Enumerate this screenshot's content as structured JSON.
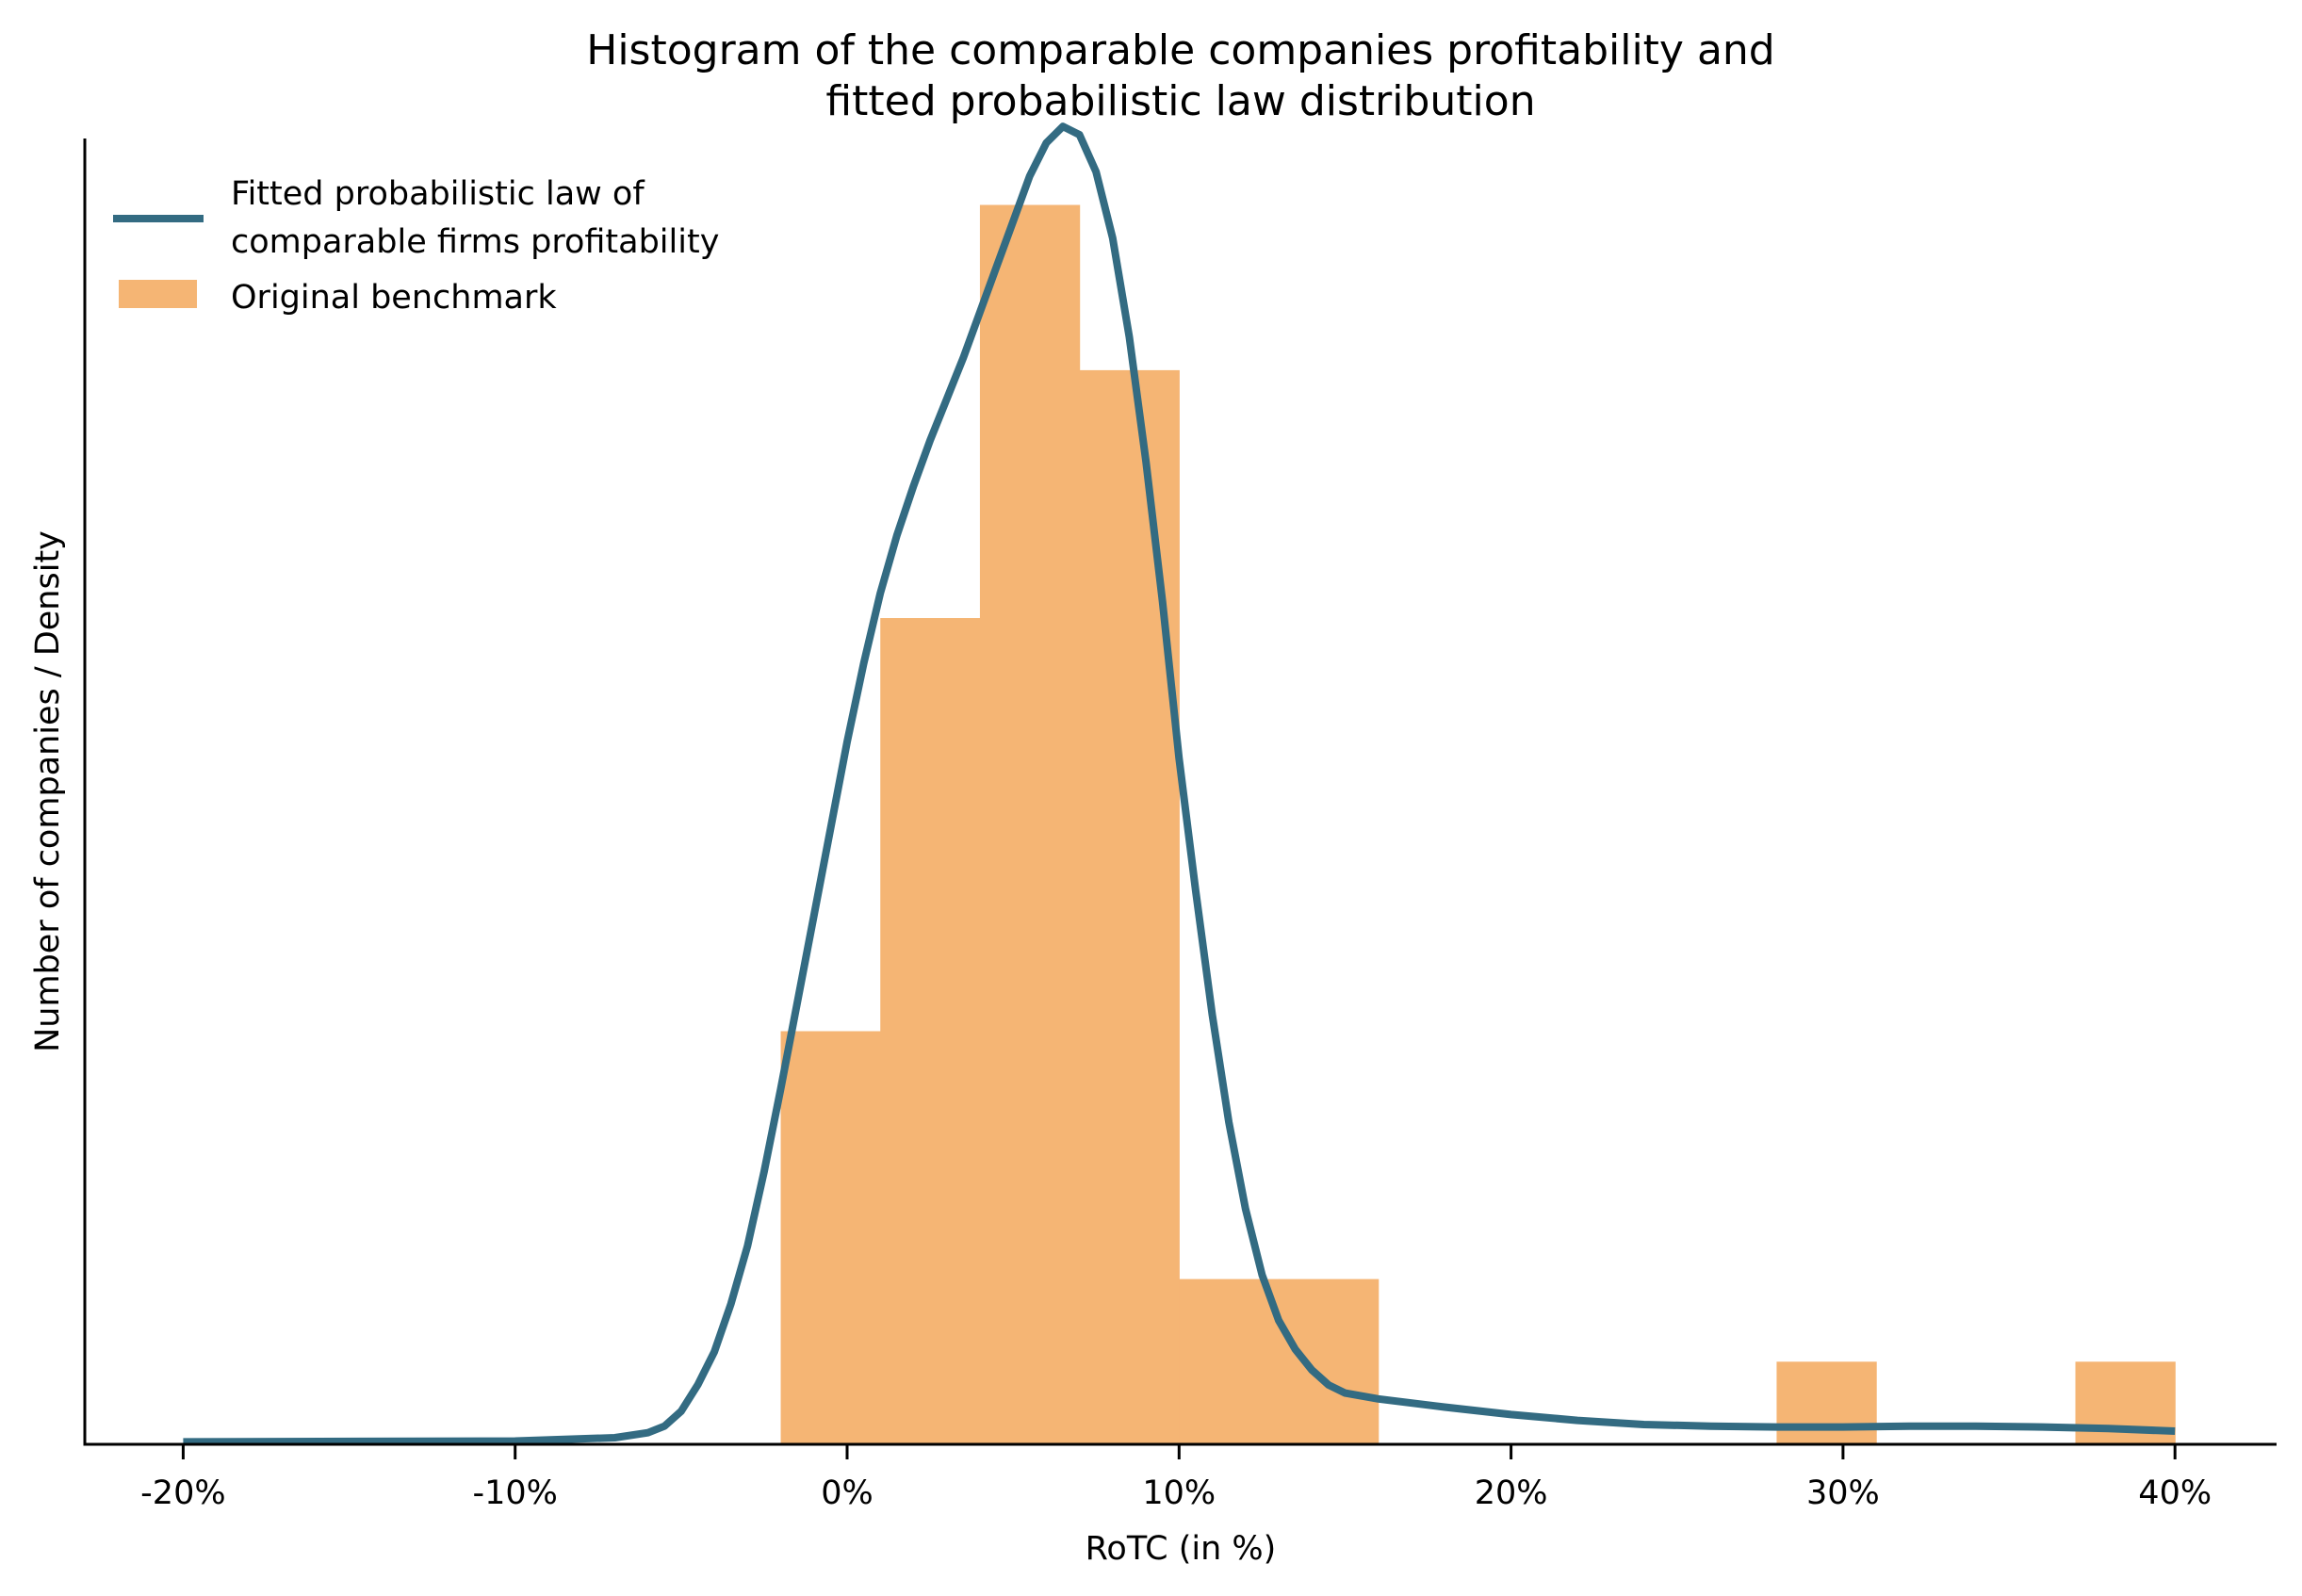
{
  "chart_data": {
    "type": "bar",
    "subtype": "histogram_with_density_line",
    "title": "Histogram of the comparable companies profitability and\nfitted probabilistic law distribution",
    "title_lines": [
      "Histogram of the comparable companies profitability and",
      "fitted probabilistic law distribution"
    ],
    "xlabel": "RoTC (in %)",
    "ylabel": "Number of companies / Density",
    "xlim": [
      -23,
      42.5
    ],
    "ylim": [
      0,
      15.8
    ],
    "x_ticks": [
      -20,
      -10,
      0,
      10,
      20,
      30,
      40
    ],
    "x_tick_labels": [
      "-20%",
      "-10%",
      "0%",
      "10%",
      "20%",
      "30%",
      "40%"
    ],
    "y_ticks": [],
    "grid": false,
    "legend_position": "upper left",
    "legend": [
      {
        "label_lines": [
          "Fitted probabilistic law of",
          "comparable firms profitability"
        ],
        "type": "line",
        "color": "#336b82"
      },
      {
        "label_lines": [
          "Original benchmark"
        ],
        "type": "patch",
        "color": "#f5b574"
      }
    ],
    "series": [
      {
        "name": "Original benchmark",
        "type": "histogram",
        "color": "#f5b574",
        "bin_edges": [
          -2,
          1,
          4,
          7,
          10,
          13,
          16,
          19,
          22,
          25,
          28,
          31,
          34,
          37,
          40
        ],
        "values": [
          5,
          10,
          15,
          13,
          2,
          2,
          0,
          0,
          0,
          0,
          1,
          0,
          0,
          1
        ]
      },
      {
        "name": "Fitted probabilistic law of comparable firms profitability",
        "type": "line",
        "color": "#336b82",
        "x": [
          -20,
          -10,
          -7,
          -6,
          -5.5,
          -5,
          -4.5,
          -4,
          -3.5,
          -3,
          -2.5,
          -2,
          -1.5,
          -1,
          -0.5,
          0,
          0.5,
          1,
          1.5,
          2,
          2.5,
          3,
          3.5,
          4,
          4.5,
          5,
          5.5,
          6,
          6.5,
          7,
          7.5,
          8,
          8.5,
          9,
          9.5,
          10,
          10.5,
          11,
          11.5,
          12,
          12.5,
          13,
          13.5,
          14,
          14.5,
          15,
          16,
          18,
          20,
          22,
          24,
          26,
          28,
          30,
          32,
          34,
          36,
          38,
          40
        ],
        "values": [
          0.03,
          0.04,
          0.08,
          0.14,
          0.22,
          0.4,
          0.72,
          1.12,
          1.7,
          2.4,
          3.3,
          4.3,
          5.35,
          6.4,
          7.45,
          8.5,
          9.45,
          10.3,
          11.0,
          11.6,
          12.15,
          12.65,
          13.15,
          13.7,
          14.25,
          14.8,
          15.35,
          15.75,
          15.95,
          15.85,
          15.4,
          14.6,
          13.4,
          11.9,
          10.2,
          8.3,
          6.7,
          5.2,
          3.9,
          2.85,
          2.05,
          1.5,
          1.15,
          0.9,
          0.72,
          0.62,
          0.55,
          0.45,
          0.36,
          0.29,
          0.24,
          0.22,
          0.21,
          0.21,
          0.22,
          0.22,
          0.21,
          0.19,
          0.16
        ]
      }
    ]
  },
  "colors": {
    "bar": "#f5b574",
    "line": "#336b82",
    "axis": "#000000",
    "background": "#ffffff"
  }
}
